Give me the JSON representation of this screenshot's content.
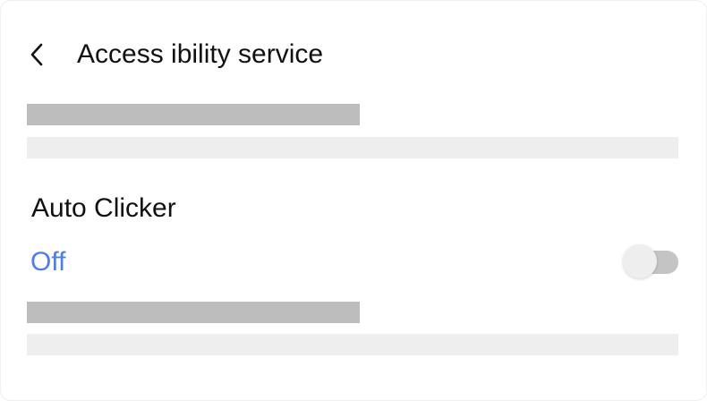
{
  "header": {
    "back_icon": "chevron-left-icon",
    "title": "Access ibility service"
  },
  "service": {
    "name": "Auto Clicker",
    "status": "Off",
    "enabled": false,
    "status_color": "#4f7bf0"
  },
  "colors": {
    "placeholder_dark": "#bdbdbd",
    "placeholder_light": "#eeeeee",
    "toggle_track_off": "#c4c4c4",
    "toggle_knob_off": "#eeeeee"
  }
}
